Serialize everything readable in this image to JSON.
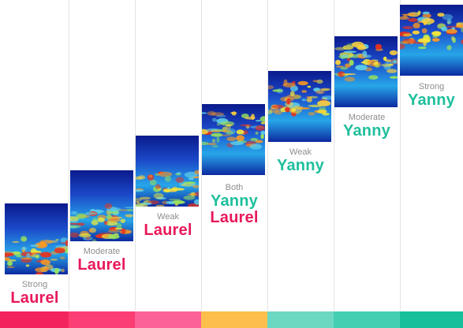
{
  "colors": {
    "laurel": "#e8195a",
    "yanny": "#1fbf9c",
    "strength_text": "#8e8e8e",
    "divider": "#e3e3e3",
    "bar": [
      "#f3245d",
      "#fb3e74",
      "#fc6198",
      "#fcbf4b",
      "#6dd8c2",
      "#44cfb3",
      "#17bf9b"
    ]
  },
  "columns": [
    {
      "strength": "Strong",
      "words": [
        "Laurel"
      ]
    },
    {
      "strength": "Moderate",
      "words": [
        "Laurel"
      ]
    },
    {
      "strength": "Weak",
      "words": [
        "Laurel"
      ]
    },
    {
      "strength": "Both",
      "words": [
        "Yanny",
        "Laurel"
      ]
    },
    {
      "strength": "Weak",
      "words": [
        "Yanny"
      ]
    },
    {
      "strength": "Moderate",
      "words": [
        "Yanny"
      ]
    },
    {
      "strength": "Strong",
      "words": [
        "Yanny"
      ]
    }
  ]
}
